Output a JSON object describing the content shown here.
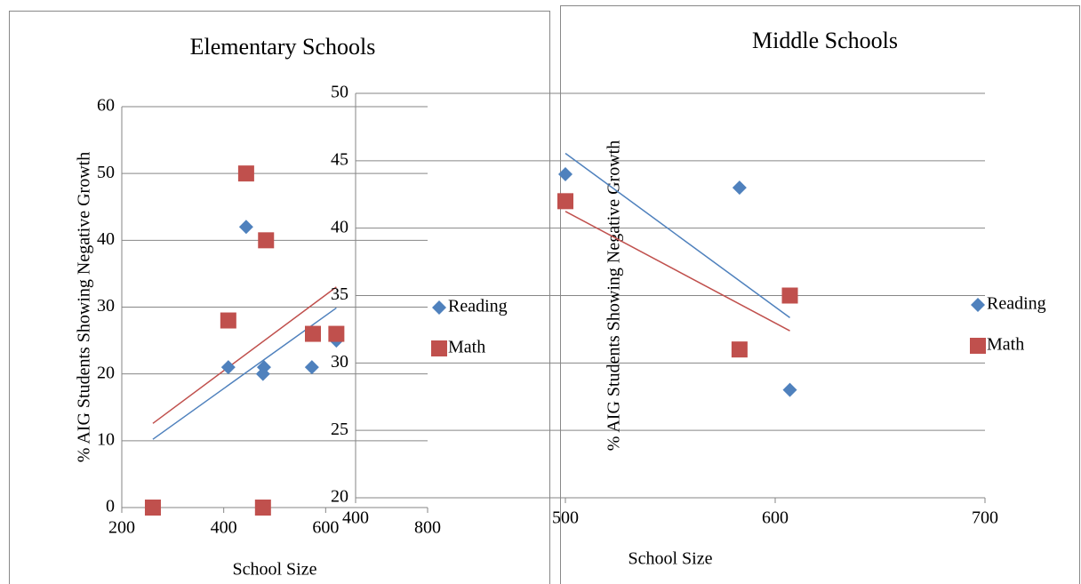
{
  "chart_data": [
    {
      "type": "scatter",
      "title": "Elementary Schools",
      "x_label": "School Size",
      "y_label": "% AIG Students Showing Negative Growth",
      "xlim": [
        200,
        800
      ],
      "xticks": [
        200,
        400,
        600,
        800
      ],
      "ylim": [
        0,
        60
      ],
      "yticks": [
        0,
        10,
        20,
        30,
        40,
        50,
        60
      ],
      "grid": true,
      "trendline": true,
      "legend": "right",
      "series": [
        {
          "name": "Reading",
          "color": "#4f81bd",
          "marker": "diamond",
          "x": [
            261,
            409,
            444,
            479,
            477,
            573,
            621
          ],
          "values": [
            0,
            21,
            42,
            21,
            20,
            21,
            25
          ]
        },
        {
          "name": "Math",
          "color": "#c0504d",
          "marker": "square",
          "x": [
            261,
            409,
            444,
            483,
            477,
            575,
            621
          ],
          "values": [
            0,
            28,
            50,
            40,
            0,
            26,
            26
          ]
        }
      ]
    },
    {
      "type": "scatter",
      "title": "Middle Schools",
      "x_label": "School Size",
      "y_label": "% AIG Students Showing Negative Growth",
      "xlim": [
        400,
        700
      ],
      "xticks": [
        400,
        500,
        600,
        700
      ],
      "ylim": [
        20,
        50
      ],
      "yticks": [
        20,
        25,
        30,
        35,
        40,
        45,
        50
      ],
      "grid": true,
      "trendline": true,
      "legend": "right",
      "series": [
        {
          "name": "Reading",
          "color": "#4f81bd",
          "marker": "diamond",
          "x": [
            500,
            583,
            607
          ],
          "values": [
            44,
            43,
            28
          ]
        },
        {
          "name": "Math",
          "color": "#c0504d",
          "marker": "square",
          "x": [
            500,
            583,
            607
          ],
          "values": [
            42,
            31,
            35
          ]
        }
      ]
    }
  ]
}
